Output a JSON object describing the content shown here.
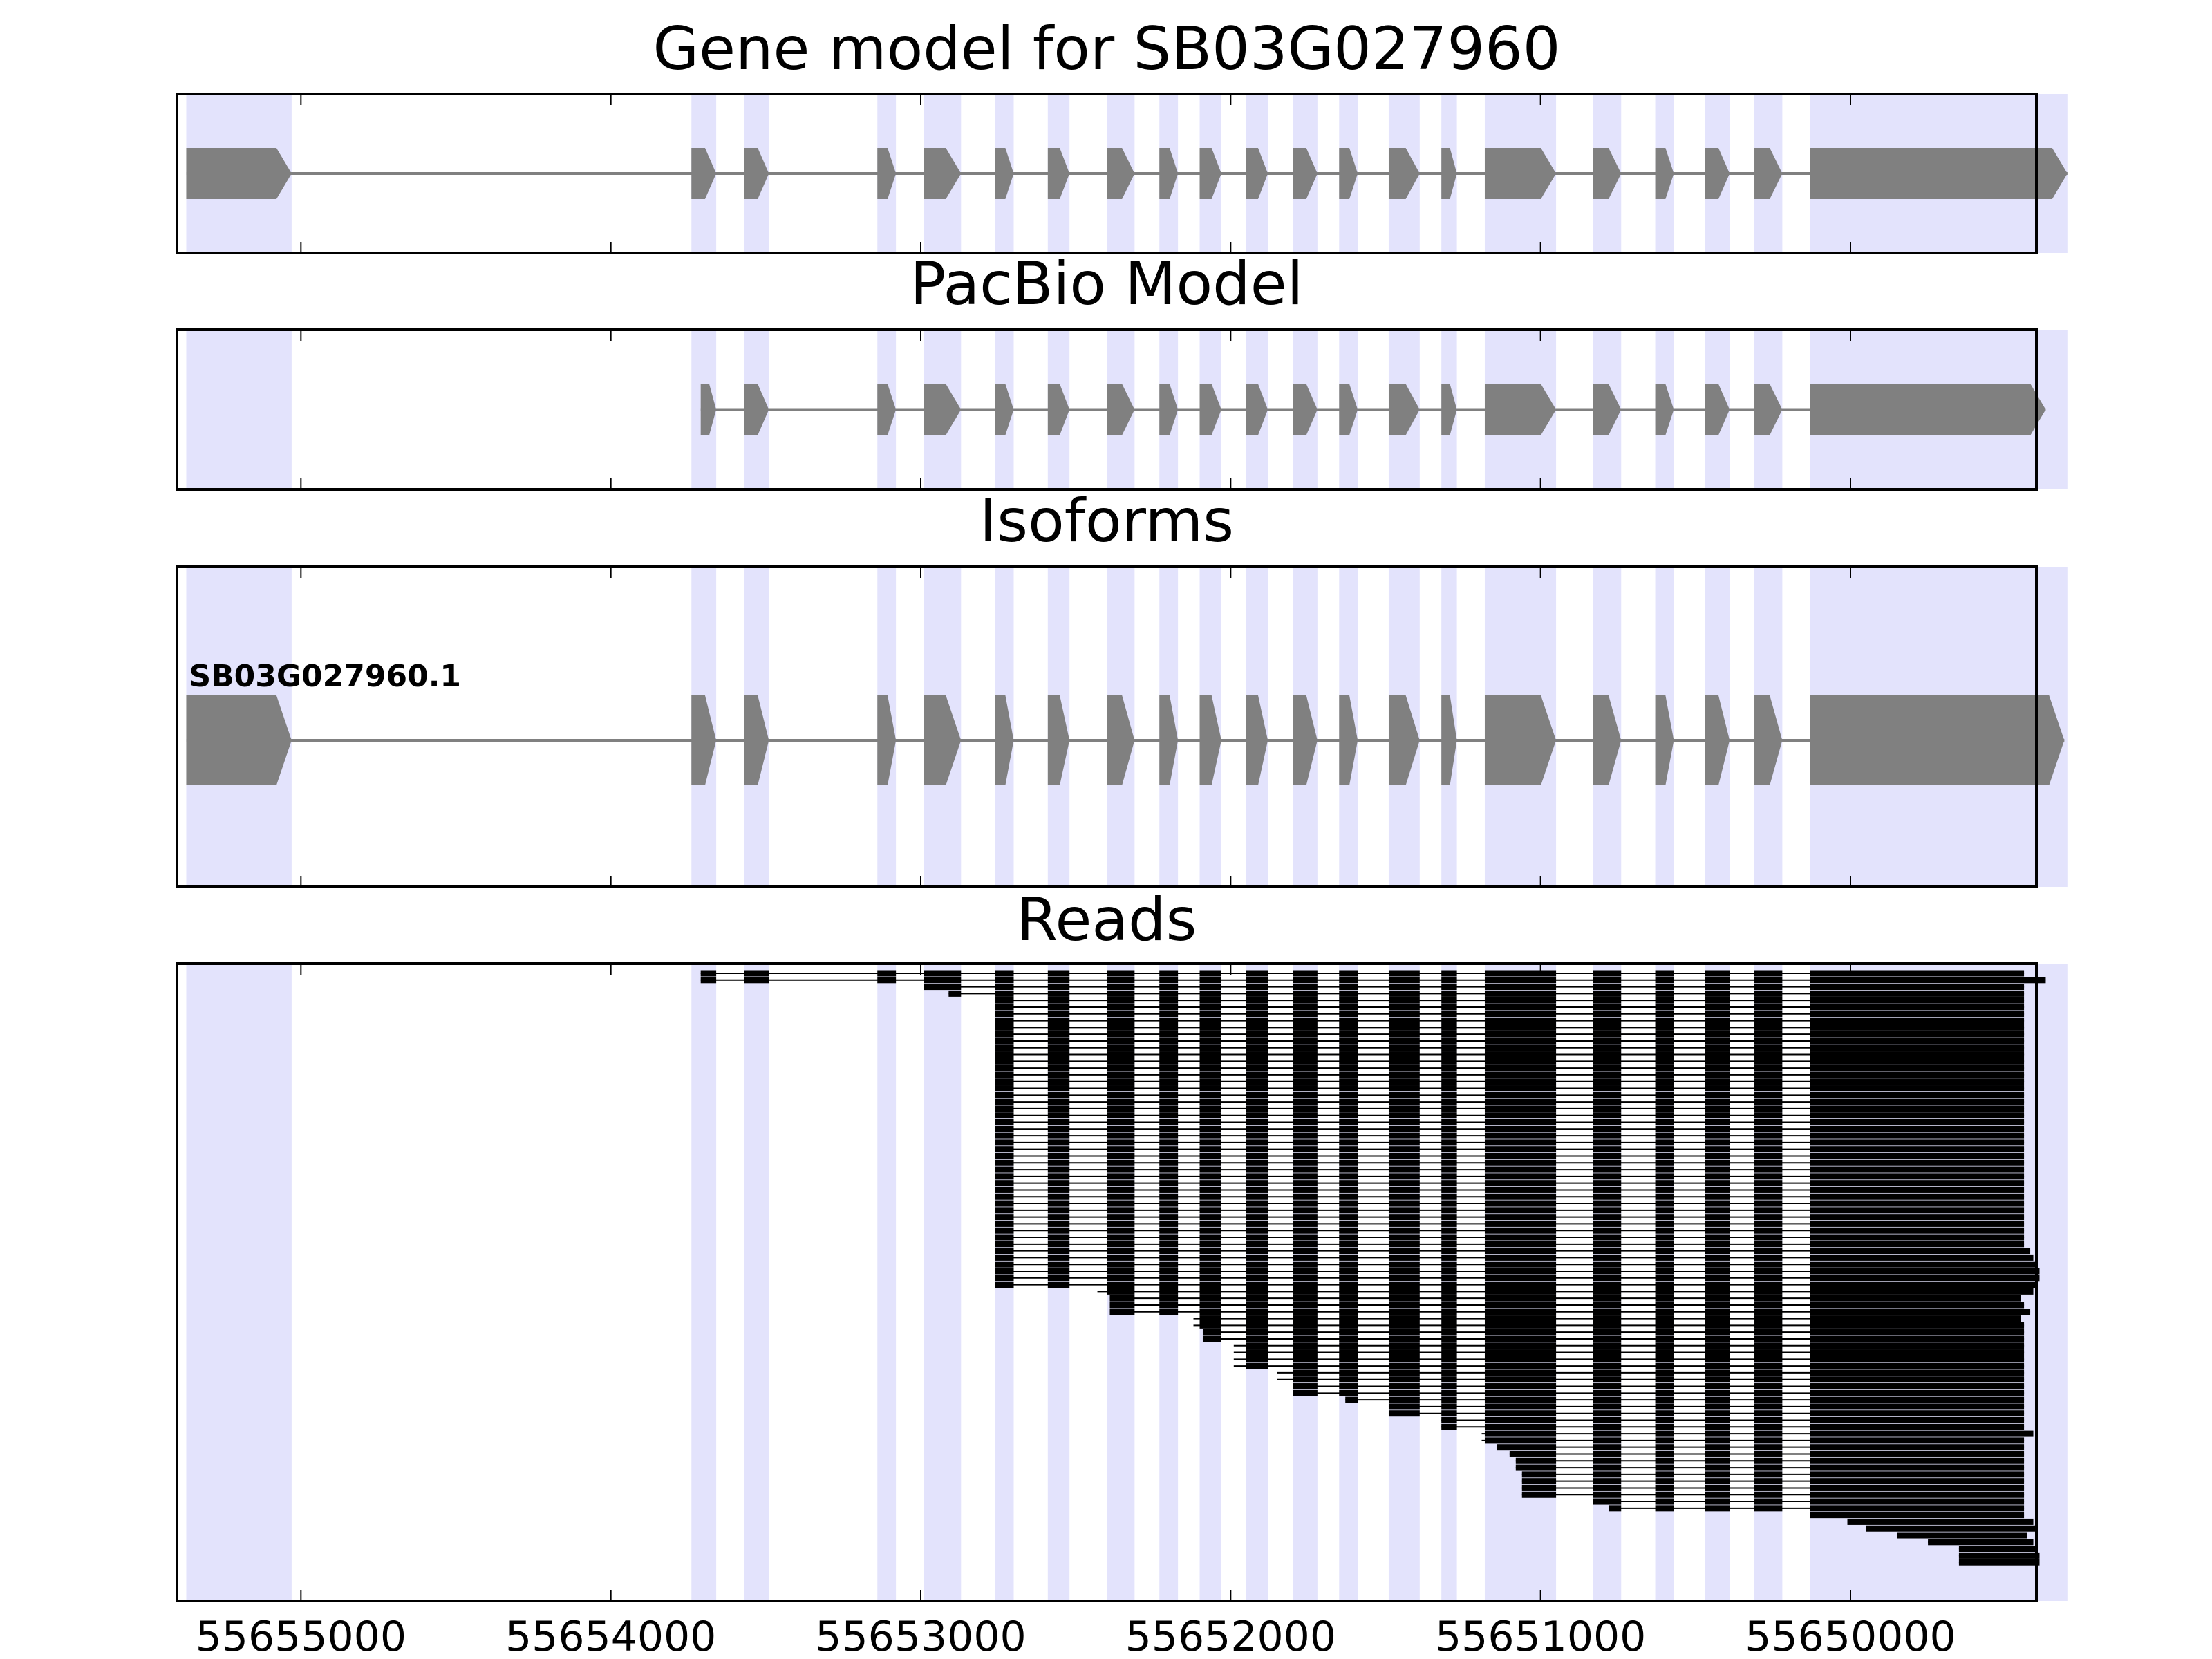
{
  "chart_data": {
    "type": "gene-structure",
    "chromosome_direction": "reverse (coordinates decrease to the right)",
    "xlim": [
      55655400,
      55649400
    ],
    "xticks": [
      55655000,
      55654000,
      55653000,
      55652000,
      55651000,
      55650000
    ],
    "xtick_labels": [
      "55655000",
      "55654000",
      "55653000",
      "55652000",
      "55651000",
      "55650000"
    ],
    "exon_shading_color": "#E3E3FC",
    "feature_color": "#808080",
    "read_color": "#000000",
    "exons": [
      [
        55655370,
        55655030
      ],
      [
        55653740,
        55653660
      ],
      [
        55653570,
        55653490
      ],
      [
        55653140,
        55653080
      ],
      [
        55652990,
        55652870
      ],
      [
        55652760,
        55652700
      ],
      [
        55652590,
        55652520
      ],
      [
        55652400,
        55652310
      ],
      [
        55652230,
        55652170
      ],
      [
        55652100,
        55652030
      ],
      [
        55651950,
        55651880
      ],
      [
        55651800,
        55651720
      ],
      [
        55651650,
        55651590
      ],
      [
        55651490,
        55651390
      ],
      [
        55651320,
        55651270
      ],
      [
        55651180,
        55650950
      ],
      [
        55650830,
        55650740
      ],
      [
        55650630,
        55650570
      ],
      [
        55650470,
        55650390
      ],
      [
        55650310,
        55650220
      ],
      [
        55650130,
        55649300
      ]
    ],
    "panels": [
      {
        "title": "Gene model for SB03G027960",
        "type": "gene-model",
        "features": [
          {
            "start": 55655370,
            "end": 55649300,
            "exons": [
              [
                55655370,
                55655030
              ],
              [
                55653740,
                55653660
              ],
              [
                55653570,
                55653490
              ],
              [
                55653140,
                55653080
              ],
              [
                55652990,
                55652870
              ],
              [
                55652760,
                55652700
              ],
              [
                55652590,
                55652520
              ],
              [
                55652400,
                55652310
              ],
              [
                55652230,
                55652170
              ],
              [
                55652100,
                55652030
              ],
              [
                55651950,
                55651880
              ],
              [
                55651800,
                55651720
              ],
              [
                55651650,
                55651590
              ],
              [
                55651490,
                55651390
              ],
              [
                55651320,
                55651270
              ],
              [
                55651180,
                55650950
              ],
              [
                55650830,
                55650740
              ],
              [
                55650630,
                55650570
              ],
              [
                55650470,
                55650390
              ],
              [
                55650310,
                55650220
              ],
              [
                55650130,
                55649300
              ]
            ]
          }
        ]
      },
      {
        "title": "PacBio Model",
        "type": "gene-model",
        "features": [
          {
            "start": 55653710,
            "end": 55649370,
            "exons": [
              [
                55653710,
                55653660
              ],
              [
                55653570,
                55653490
              ],
              [
                55653140,
                55653080
              ],
              [
                55652990,
                55652870
              ],
              [
                55652760,
                55652700
              ],
              [
                55652590,
                55652520
              ],
              [
                55652400,
                55652310
              ],
              [
                55652230,
                55652170
              ],
              [
                55652100,
                55652030
              ],
              [
                55651950,
                55651880
              ],
              [
                55651800,
                55651720
              ],
              [
                55651650,
                55651590
              ],
              [
                55651490,
                55651390
              ],
              [
                55651320,
                55651270
              ],
              [
                55651180,
                55650950
              ],
              [
                55650830,
                55650740
              ],
              [
                55650630,
                55650570
              ],
              [
                55650470,
                55650390
              ],
              [
                55650310,
                55650220
              ],
              [
                55650130,
                55649370
              ]
            ]
          }
        ]
      },
      {
        "title": "Isoforms",
        "type": "isoforms",
        "isoforms": [
          {
            "name": "SB03G027960.1",
            "start": 55655370,
            "end": 55649310,
            "exons": [
              [
                55655370,
                55655030
              ],
              [
                55653740,
                55653660
              ],
              [
                55653570,
                55653490
              ],
              [
                55653140,
                55653080
              ],
              [
                55652990,
                55652870
              ],
              [
                55652760,
                55652700
              ],
              [
                55652590,
                55652520
              ],
              [
                55652400,
                55652310
              ],
              [
                55652230,
                55652170
              ],
              [
                55652100,
                55652030
              ],
              [
                55651950,
                55651880
              ],
              [
                55651800,
                55651720
              ],
              [
                55651650,
                55651590
              ],
              [
                55651490,
                55651390
              ],
              [
                55651320,
                55651270
              ],
              [
                55651180,
                55650950
              ],
              [
                55650830,
                55650740
              ],
              [
                55650630,
                55650570
              ],
              [
                55650470,
                55650390
              ],
              [
                55650310,
                55650220
              ],
              [
                55650130,
                55649310
              ]
            ]
          }
        ]
      },
      {
        "title": "Reads",
        "type": "reads",
        "read_count": 88,
        "read_starts": [
          55653710,
          55653710,
          55652990,
          55652910,
          55652760,
          55652760,
          55652760,
          55652760,
          55652760,
          55652760,
          55652760,
          55652760,
          55652760,
          55652760,
          55652760,
          55652760,
          55652760,
          55652760,
          55652760,
          55652760,
          55652760,
          55652760,
          55652760,
          55652760,
          55652760,
          55652760,
          55652760,
          55652760,
          55652760,
          55652760,
          55652760,
          55652760,
          55652760,
          55652760,
          55652760,
          55652760,
          55652760,
          55652760,
          55652760,
          55652760,
          55652760,
          55652760,
          55652760,
          55652760,
          55652760,
          55652760,
          55652760,
          55652430,
          55652390,
          55652390,
          55652390,
          55652120,
          55652120,
          55652090,
          55652090,
          55651990,
          55651990,
          55651990,
          55651990,
          55651850,
          55651850,
          55651800,
          55651800,
          55651630,
          55651490,
          55651490,
          55651320,
          55651320,
          55651190,
          55651190,
          55651140,
          55651100,
          55651080,
          55651080,
          55651060,
          55651060,
          55651060,
          55651060,
          55650830,
          55650780,
          55650130,
          55650010,
          55649950,
          55649850,
          55649750,
          55649650,
          55649650,
          55649650
        ],
        "read_ends": [
          55649440,
          55649370,
          55649440,
          55649440,
          55649440,
          55649440,
          55649440,
          55649440,
          55649440,
          55649440,
          55649440,
          55649440,
          55649440,
          55649440,
          55649440,
          55649440,
          55649440,
          55649440,
          55649440,
          55649440,
          55649440,
          55649440,
          55649440,
          55649440,
          55649440,
          55649440,
          55649440,
          55649440,
          55649440,
          55649440,
          55649440,
          55649440,
          55649440,
          55649440,
          55649440,
          55649440,
          55649440,
          55649440,
          55649440,
          55649440,
          55649440,
          55649420,
          55649410,
          55649400,
          55649390,
          55649390,
          55649400,
          55649410,
          55649450,
          55649440,
          55649420,
          55649450,
          55649440,
          55649440,
          55649440,
          55649440,
          55649440,
          55649440,
          55649440,
          55649440,
          55649440,
          55649440,
          55649440,
          55649440,
          55649440,
          55649440,
          55649440,
          55649440,
          55649410,
          55649440,
          55649440,
          55649440,
          55649440,
          55649440,
          55649440,
          55649440,
          55649440,
          55649440,
          55649440,
          55649440,
          55649440,
          55649410,
          55649400,
          55649430,
          55649410,
          55649400,
          55649390,
          55649390
        ]
      }
    ]
  }
}
